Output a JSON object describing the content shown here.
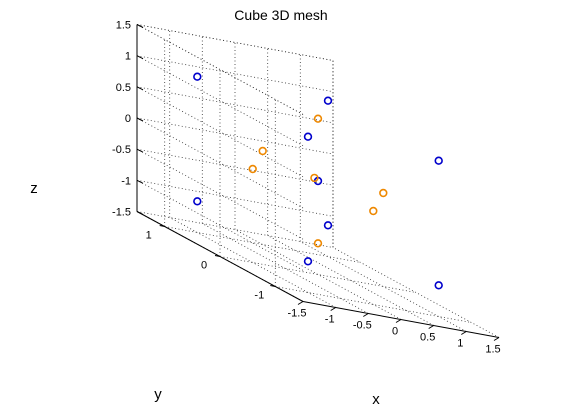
{
  "chart_data": {
    "type": "scatter",
    "title": "Cube 3D mesh",
    "xlabel": "x",
    "ylabel": "y",
    "zlabel": "z",
    "xlim": [
      -1.5,
      1.5
    ],
    "ylim": [
      -1.5,
      1.5
    ],
    "zlim": [
      -1.5,
      1.5
    ],
    "xticks": [
      "-1.5",
      "-1",
      "-0.5",
      "0",
      "0.5",
      "1",
      "1.5"
    ],
    "yticks": [
      "-1",
      "0",
      "1"
    ],
    "zticks": [
      "-1.5",
      "-1",
      "-0.5",
      "0",
      "0.5",
      "1",
      "1.5"
    ],
    "grid": true,
    "marker": "circle",
    "series": [
      {
        "color": "#0000cc",
        "points": [
          {
            "x": -1.0,
            "y": 1.0,
            "z": -1.0
          },
          {
            "x": -1.0,
            "y": -1.0,
            "z": -1.0
          },
          {
            "x": 1.0,
            "y": -1.0,
            "z": -1.0
          },
          {
            "x": 1.0,
            "y": 1.0,
            "z": -1.0
          },
          {
            "x": -1.0,
            "y": 1.0,
            "z": 1.0
          },
          {
            "x": -1.0,
            "y": -1.0,
            "z": 1.0
          },
          {
            "x": 1.0,
            "y": -1.0,
            "z": 1.0
          },
          {
            "x": 1.0,
            "y": 1.0,
            "z": 1.0
          },
          {
            "x": 0.0,
            "y": 0.0,
            "z": 0.0
          }
        ]
      },
      {
        "color": "#ee8800",
        "points": [
          {
            "x": -1.0,
            "y": 0.0,
            "z": 0.0
          },
          {
            "x": 1.0,
            "y": 0.0,
            "z": 0.0
          },
          {
            "x": 0.0,
            "y": -1.0,
            "z": 0.0
          },
          {
            "x": 0.0,
            "y": 1.0,
            "z": 0.0
          },
          {
            "x": 0.0,
            "y": 0.0,
            "z": -1.0
          },
          {
            "x": 0.0,
            "y": 0.0,
            "z": 1.0
          },
          {
            "x": -0.03,
            "y": 0.03,
            "z": 0.03
          }
        ]
      }
    ]
  }
}
